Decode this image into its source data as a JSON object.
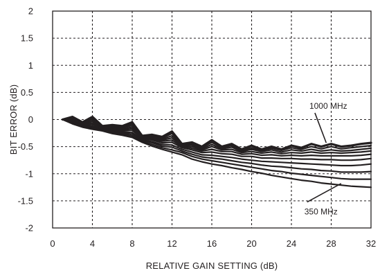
{
  "chart_data": {
    "type": "line",
    "title": "",
    "xlabel": "RELATIVE GAIN SETTING (dB)",
    "ylabel": "BIT ERROR (dB)",
    "xlim": [
      0,
      32
    ],
    "ylim": [
      -2,
      2
    ],
    "xticks": [
      0,
      4,
      8,
      12,
      16,
      20,
      24,
      28,
      32
    ],
    "yticks": [
      2,
      1.5,
      1,
      0.5,
      0,
      -0.5,
      -1,
      -1.5,
      -2
    ],
    "xtick_labels": [
      "0",
      "4",
      "8",
      "12",
      "16",
      "20",
      "24",
      "28",
      "32"
    ],
    "ytick_labels": [
      "2",
      "1.5",
      "1",
      "0.5",
      "0",
      "-0.5",
      "-1",
      "-1.5",
      "-2"
    ],
    "grid": true,
    "annotations": [
      {
        "label": "1000 MHz",
        "x_text": 26.5,
        "y_text": 0.25,
        "x_arrow": 27.5,
        "y_arrow": -0.43
      },
      {
        "label": "350 MHz",
        "x_text": 26.0,
        "y_text": -1.7,
        "x_arrow": 29.0,
        "y_arrow": -1.18
      }
    ],
    "x": [
      1,
      2,
      3,
      4,
      5,
      6,
      7,
      8,
      9,
      10,
      11,
      12,
      13,
      14,
      15,
      16,
      17,
      18,
      19,
      20,
      21,
      22,
      23,
      24,
      25,
      26,
      27,
      28,
      29,
      30,
      31,
      32
    ],
    "series": [
      {
        "values": [
          0.0,
          0.05,
          -0.05,
          0.05,
          -0.12,
          -0.1,
          -0.12,
          -0.05,
          -0.3,
          -0.28,
          -0.32,
          -0.22,
          -0.45,
          -0.42,
          -0.5,
          -0.38,
          -0.5,
          -0.45,
          -0.55,
          -0.48,
          -0.55,
          -0.5,
          -0.55,
          -0.48,
          -0.52,
          -0.45,
          -0.5,
          -0.45,
          -0.5,
          -0.48,
          -0.45,
          -0.43
        ]
      },
      {
        "values": [
          0.0,
          0.03,
          -0.06,
          0.03,
          -0.13,
          -0.11,
          -0.13,
          -0.08,
          -0.31,
          -0.3,
          -0.34,
          -0.26,
          -0.46,
          -0.45,
          -0.52,
          -0.42,
          -0.52,
          -0.48,
          -0.57,
          -0.52,
          -0.57,
          -0.53,
          -0.57,
          -0.52,
          -0.55,
          -0.5,
          -0.54,
          -0.5,
          -0.54,
          -0.52,
          -0.5,
          -0.48
        ]
      },
      {
        "values": [
          0.0,
          0.01,
          -0.07,
          0.0,
          -0.14,
          -0.12,
          -0.15,
          -0.11,
          -0.32,
          -0.32,
          -0.36,
          -0.3,
          -0.47,
          -0.47,
          -0.54,
          -0.46,
          -0.54,
          -0.51,
          -0.59,
          -0.55,
          -0.59,
          -0.56,
          -0.6,
          -0.56,
          -0.58,
          -0.55,
          -0.58,
          -0.56,
          -0.58,
          -0.57,
          -0.55,
          -0.53
        ]
      },
      {
        "values": [
          0.0,
          -0.01,
          -0.08,
          -0.03,
          -0.15,
          -0.14,
          -0.17,
          -0.14,
          -0.33,
          -0.34,
          -0.38,
          -0.34,
          -0.48,
          -0.5,
          -0.56,
          -0.5,
          -0.56,
          -0.55,
          -0.61,
          -0.59,
          -0.62,
          -0.6,
          -0.63,
          -0.61,
          -0.62,
          -0.6,
          -0.62,
          -0.61,
          -0.62,
          -0.61,
          -0.6,
          -0.58
        ]
      },
      {
        "values": [
          0.0,
          -0.03,
          -0.09,
          -0.06,
          -0.16,
          -0.16,
          -0.19,
          -0.17,
          -0.34,
          -0.36,
          -0.4,
          -0.38,
          -0.5,
          -0.53,
          -0.58,
          -0.55,
          -0.59,
          -0.59,
          -0.64,
          -0.63,
          -0.66,
          -0.65,
          -0.67,
          -0.66,
          -0.67,
          -0.66,
          -0.67,
          -0.67,
          -0.67,
          -0.67,
          -0.66,
          -0.64
        ]
      },
      {
        "values": [
          0.0,
          -0.04,
          -0.1,
          -0.09,
          -0.17,
          -0.18,
          -0.21,
          -0.2,
          -0.35,
          -0.38,
          -0.43,
          -0.42,
          -0.52,
          -0.56,
          -0.61,
          -0.6,
          -0.63,
          -0.64,
          -0.68,
          -0.68,
          -0.71,
          -0.71,
          -0.72,
          -0.72,
          -0.73,
          -0.73,
          -0.74,
          -0.74,
          -0.75,
          -0.75,
          -0.74,
          -0.72
        ]
      },
      {
        "values": [
          0.0,
          -0.05,
          -0.11,
          -0.12,
          -0.18,
          -0.2,
          -0.23,
          -0.24,
          -0.37,
          -0.41,
          -0.46,
          -0.47,
          -0.55,
          -0.6,
          -0.65,
          -0.66,
          -0.68,
          -0.7,
          -0.73,
          -0.75,
          -0.77,
          -0.78,
          -0.79,
          -0.8,
          -0.81,
          -0.82,
          -0.83,
          -0.84,
          -0.85,
          -0.85,
          -0.84,
          -0.82
        ]
      },
      {
        "values": [
          0.0,
          -0.06,
          -0.12,
          -0.14,
          -0.19,
          -0.22,
          -0.25,
          -0.27,
          -0.38,
          -0.43,
          -0.49,
          -0.51,
          -0.58,
          -0.64,
          -0.69,
          -0.71,
          -0.73,
          -0.76,
          -0.79,
          -0.81,
          -0.84,
          -0.86,
          -0.87,
          -0.89,
          -0.91,
          -0.92,
          -0.94,
          -0.95,
          -0.97,
          -0.97,
          -0.97,
          -0.96
        ]
      },
      {
        "values": [
          0.0,
          -0.07,
          -0.13,
          -0.16,
          -0.2,
          -0.24,
          -0.27,
          -0.3,
          -0.4,
          -0.46,
          -0.52,
          -0.56,
          -0.61,
          -0.68,
          -0.73,
          -0.76,
          -0.79,
          -0.82,
          -0.85,
          -0.88,
          -0.91,
          -0.94,
          -0.96,
          -0.99,
          -1.01,
          -1.03,
          -1.05,
          -1.07,
          -1.09,
          -1.1,
          -1.1,
          -1.1
        ]
      },
      {
        "values": [
          0.0,
          -0.08,
          -0.14,
          -0.18,
          -0.21,
          -0.26,
          -0.29,
          -0.33,
          -0.42,
          -0.49,
          -0.55,
          -0.6,
          -0.65,
          -0.73,
          -0.78,
          -0.82,
          -0.85,
          -0.89,
          -0.92,
          -0.96,
          -0.99,
          -1.03,
          -1.06,
          -1.09,
          -1.12,
          -1.14,
          -1.17,
          -1.19,
          -1.21,
          -1.23,
          -1.24,
          -1.25
        ]
      }
    ]
  }
}
